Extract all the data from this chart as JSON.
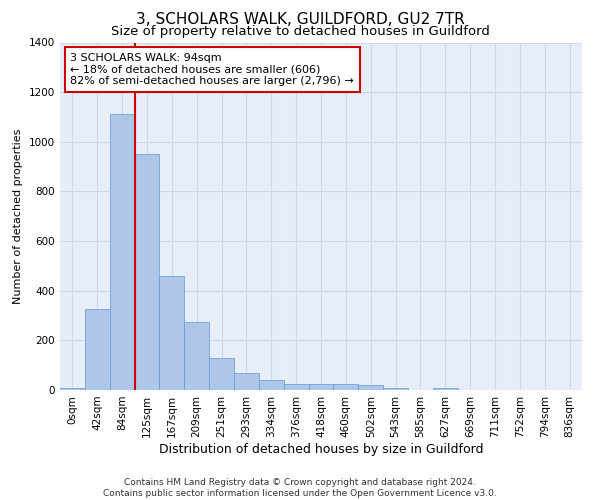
{
  "title": "3, SCHOLARS WALK, GUILDFORD, GU2 7TR",
  "subtitle": "Size of property relative to detached houses in Guildford",
  "xlabel": "Distribution of detached houses by size in Guildford",
  "ylabel": "Number of detached properties",
  "bar_labels": [
    "0sqm",
    "42sqm",
    "84sqm",
    "125sqm",
    "167sqm",
    "209sqm",
    "251sqm",
    "293sqm",
    "334sqm",
    "376sqm",
    "418sqm",
    "460sqm",
    "502sqm",
    "543sqm",
    "585sqm",
    "627sqm",
    "669sqm",
    "711sqm",
    "752sqm",
    "794sqm",
    "836sqm"
  ],
  "bar_heights": [
    10,
    325,
    1110,
    950,
    460,
    275,
    130,
    70,
    40,
    25,
    25,
    25,
    20,
    10,
    0,
    10,
    0,
    0,
    0,
    0,
    0
  ],
  "bar_color": "#aec6e8",
  "bar_edge_color": "#5a9bd5",
  "vline_color": "#cc0000",
  "annotation_text": "3 SCHOLARS WALK: 94sqm\n← 18% of detached houses are smaller (606)\n82% of semi-detached houses are larger (2,796) →",
  "annotation_box_color": "#cc0000",
  "ylim": [
    0,
    1400
  ],
  "yticks": [
    0,
    200,
    400,
    600,
    800,
    1000,
    1200,
    1400
  ],
  "grid_color": "#d0d8e8",
  "bg_color": "#e8eef8",
  "footer_line1": "Contains HM Land Registry data © Crown copyright and database right 2024.",
  "footer_line2": "Contains public sector information licensed under the Open Government Licence v3.0.",
  "title_fontsize": 11,
  "subtitle_fontsize": 9.5,
  "xlabel_fontsize": 9,
  "ylabel_fontsize": 8,
  "tick_fontsize": 7.5,
  "annotation_fontsize": 8,
  "footer_fontsize": 6.5
}
